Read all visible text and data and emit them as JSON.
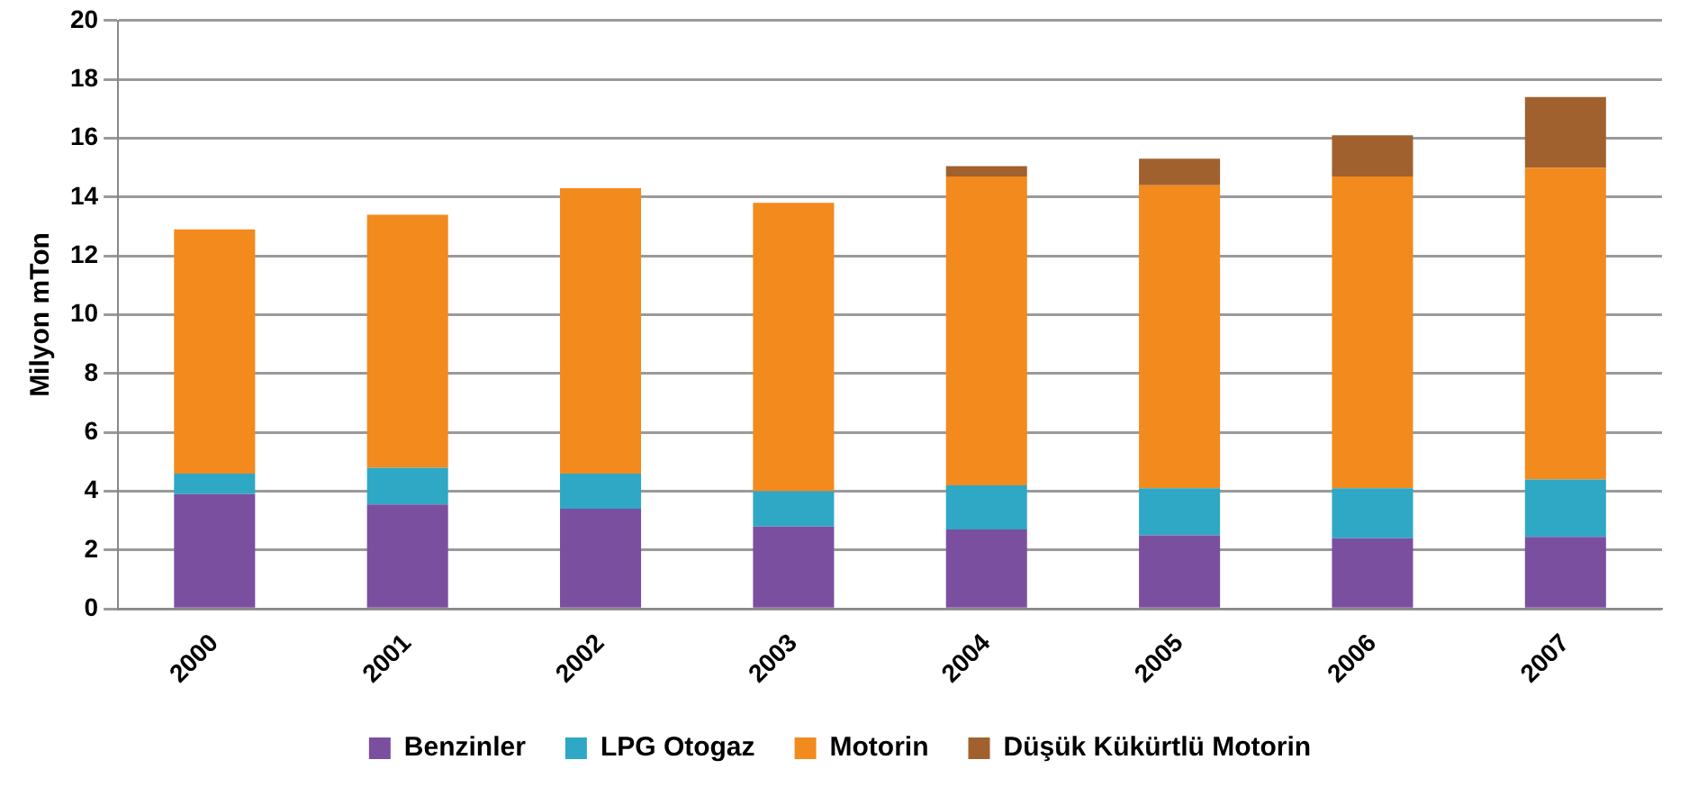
{
  "chart_data": {
    "type": "bar",
    "stacked": true,
    "ylabel": "Milyon mTon",
    "categories": [
      "2000",
      "2001",
      "2002",
      "2003",
      "2004",
      "2005",
      "2006",
      "2007"
    ],
    "series": [
      {
        "name": "Benzinler",
        "color": "#7b4fa0",
        "values": [
          3.9,
          3.55,
          3.4,
          2.8,
          2.7,
          2.5,
          2.4,
          2.45
        ]
      },
      {
        "name": "LPG Otogaz",
        "color": "#2ea8c4",
        "values": [
          0.7,
          1.25,
          1.2,
          1.2,
          1.5,
          1.6,
          1.7,
          1.95
        ]
      },
      {
        "name": "Motorin",
        "color": "#f28a1e",
        "values": [
          8.3,
          8.6,
          9.7,
          9.8,
          10.5,
          10.3,
          10.6,
          10.6
        ]
      },
      {
        "name": "Düşük Kükürtlü Motorin",
        "color": "#a0612e",
        "values": [
          null,
          null,
          null,
          null,
          0.35,
          0.9,
          1.4,
          2.4
        ]
      }
    ],
    "ylim": [
      0,
      20
    ],
    "yticks": [
      0,
      2,
      4,
      6,
      8,
      10,
      12,
      14,
      16,
      18,
      20
    ],
    "grid": "y",
    "legend": "bottom"
  }
}
